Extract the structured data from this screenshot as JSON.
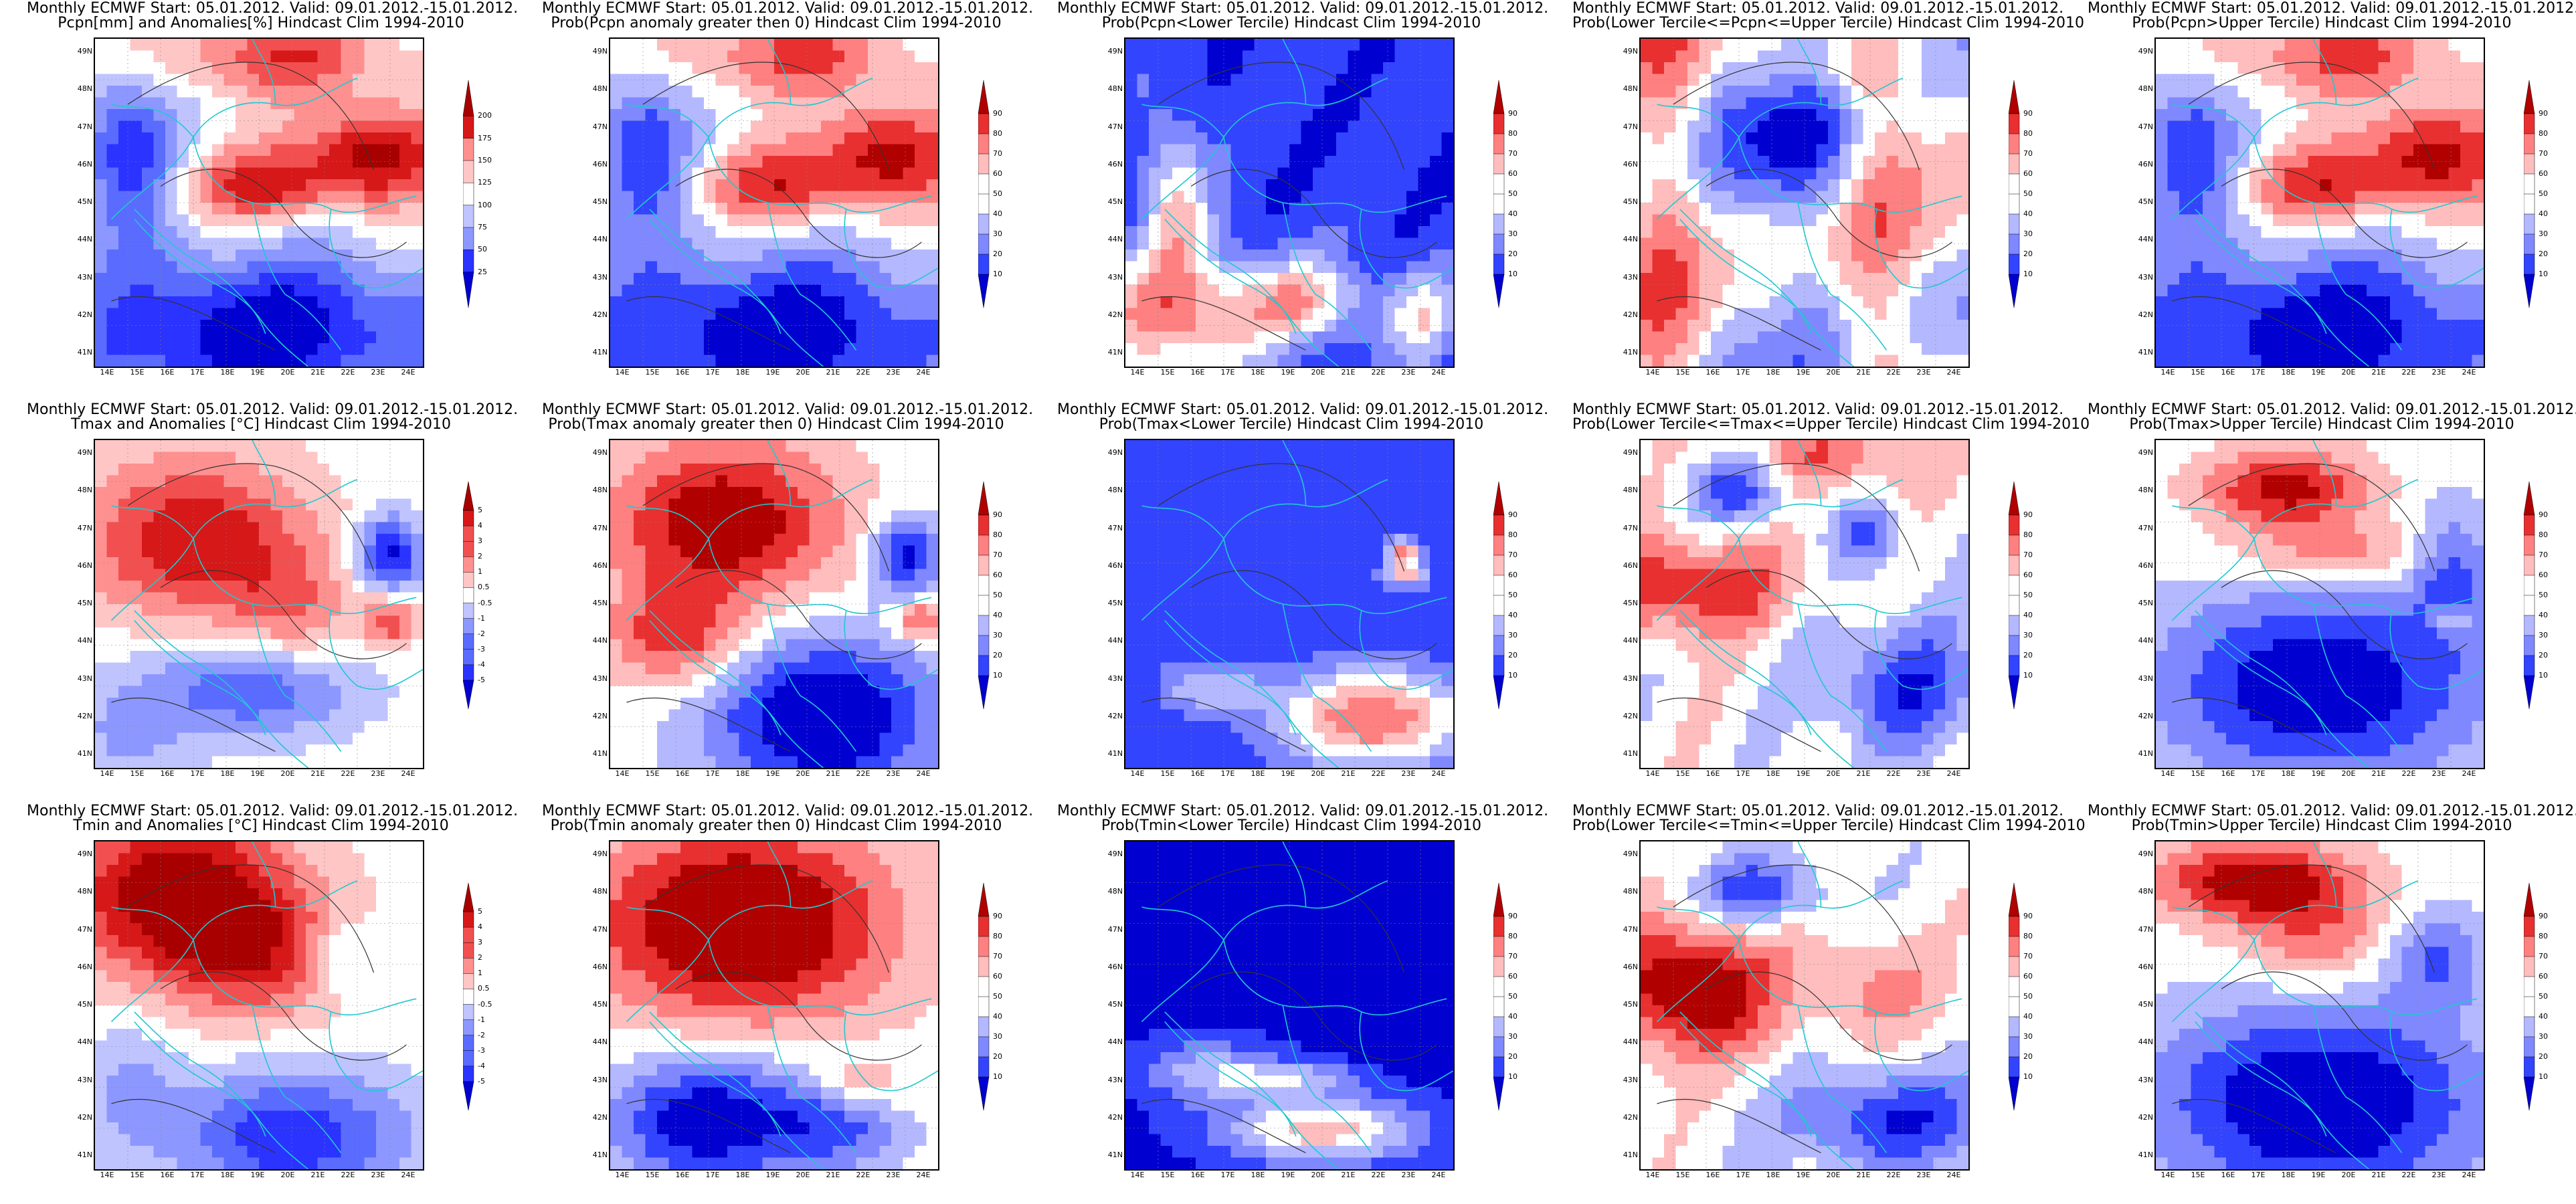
{
  "colors": {
    "anomaly_scale": [
      "#0000d0",
      "#2a33ff",
      "#5a6bff",
      "#8c98ff",
      "#bfc4ff",
      "#ffffff",
      "#ffc6c6",
      "#ff9090",
      "#f25050",
      "#d61818",
      "#a80000"
    ],
    "prob_scale": [
      "#0000d0",
      "#3344ff",
      "#7f88ff",
      "#b4b8ff",
      "#ffffff",
      "#ffbdbd",
      "#ff8080",
      "#e83030",
      "#b00000"
    ],
    "contour": "#333333",
    "border": "#20c8d0"
  },
  "lat_labels": [
    "49N",
    "48N",
    "47N",
    "46N",
    "45N",
    "44N",
    "43N",
    "42N",
    "41N"
  ],
  "lon_labels": [
    "14E",
    "15E",
    "16E",
    "17E",
    "18E",
    "19E",
    "20E",
    "21E",
    "22E",
    "23E",
    "24E"
  ],
  "panels": [
    {
      "title1": "Monthly ECMWF Start: 05.01.2012. Valid: 09.01.2012.-15.01.2012.",
      "title2": "Pcpn[mm] and Anomalies[%] Hindcast Clim 1994-2010",
      "scale": "anomaly",
      "cbar": [
        "200",
        "175",
        "150",
        "125",
        "100",
        "75",
        "50",
        "25"
      ],
      "pattern": 0
    },
    {
      "title1": "Monthly ECMWF Start: 05.01.2012. Valid: 09.01.2012.-15.01.2012.",
      "title2": "Prob(Pcpn anomaly greater then 0) Hindcast Clim 1994-2010",
      "scale": "prob",
      "cbar": [
        "90",
        "80",
        "70",
        "60",
        "50",
        "40",
        "30",
        "20",
        "10"
      ],
      "pattern": 0
    },
    {
      "title1": "Monthly ECMWF Start: 05.01.2012. Valid: 09.01.2012.-15.01.2012.",
      "title2": "Prob(Pcpn<Lower Tercile) Hindcast Clim 1994-2010",
      "scale": "prob",
      "cbar": [
        "90",
        "80",
        "70",
        "60",
        "50",
        "40",
        "30",
        "20",
        "10"
      ],
      "pattern": 1
    },
    {
      "title1": "Monthly ECMWF Start: 05.01.2012. Valid: 09.01.2012.-15.01.2012.",
      "title2": "Prob(Lower Tercile<=Pcpn<=Upper Tercile) Hindcast Clim 1994-2010",
      "scale": "prob",
      "cbar": [
        "90",
        "80",
        "70",
        "60",
        "50",
        "40",
        "30",
        "20",
        "10"
      ],
      "pattern": 2
    },
    {
      "title1": "Monthly ECMWF Start: 05.01.2012. Valid: 09.01.2012.-15.01.2012.",
      "title2": "Prob(Pcpn>Upper Tercile) Hindcast Clim 1994-2010",
      "scale": "prob",
      "cbar": [
        "90",
        "80",
        "70",
        "60",
        "50",
        "40",
        "30",
        "20",
        "10"
      ],
      "pattern": 0
    },
    {
      "title1": "Monthly ECMWF Start: 05.01.2012. Valid: 09.01.2012.-15.01.2012.",
      "title2": "Tmax and Anomalies [°C] Hindcast Clim 1994-2010",
      "scale": "anomaly",
      "cbar": [
        "5",
        "4",
        "3",
        "2",
        "1",
        "0.5",
        "-0.5",
        "-1",
        "-2",
        "-3",
        "-4",
        "-5"
      ],
      "pattern": 3
    },
    {
      "title1": "Monthly ECMWF Start: 05.01.2012. Valid: 09.01.2012.-15.01.2012.",
      "title2": "Prob(Tmax anomaly greater then 0) Hindcast Clim 1994-2010",
      "scale": "prob",
      "cbar": [
        "90",
        "80",
        "70",
        "60",
        "50",
        "40",
        "30",
        "20",
        "10"
      ],
      "pattern": 4
    },
    {
      "title1": "Monthly ECMWF Start: 05.01.2012. Valid: 09.01.2012.-15.01.2012.",
      "title2": "Prob(Tmax<Lower Tercile) Hindcast Clim 1994-2010",
      "scale": "prob",
      "cbar": [
        "90",
        "80",
        "70",
        "60",
        "50",
        "40",
        "30",
        "20",
        "10"
      ],
      "pattern": 5
    },
    {
      "title1": "Monthly ECMWF Start: 05.01.2012. Valid: 09.01.2012.-15.01.2012.",
      "title2": "Prob(Lower Tercile<=Tmax<=Upper Tercile) Hindcast Clim 1994-2010",
      "scale": "prob",
      "cbar": [
        "90",
        "80",
        "70",
        "60",
        "50",
        "40",
        "30",
        "20",
        "10"
      ],
      "pattern": 6
    },
    {
      "title1": "Monthly ECMWF Start: 05.01.2012. Valid: 09.01.2012.-15.01.2012.",
      "title2": "Prob(Tmax>Upper Tercile) Hindcast Clim 1994-2010",
      "scale": "prob",
      "cbar": [
        "90",
        "80",
        "70",
        "60",
        "50",
        "40",
        "30",
        "20",
        "10"
      ],
      "pattern": 7
    },
    {
      "title1": "Monthly ECMWF Start: 05.01.2012. Valid: 09.01.2012.-15.01.2012.",
      "title2": "Tmin and Anomalies [°C] Hindcast Clim 1994-2010",
      "scale": "anomaly",
      "cbar": [
        "5",
        "4",
        "3",
        "2",
        "1",
        "0.5",
        "-0.5",
        "-1",
        "-2",
        "-3",
        "-4",
        "-5"
      ],
      "pattern": 8
    },
    {
      "title1": "Monthly ECMWF Start: 05.01.2012. Valid: 09.01.2012.-15.01.2012.",
      "title2": "Prob(Tmin anomaly greater then 0) Hindcast Clim 1994-2010",
      "scale": "prob",
      "cbar": [
        "90",
        "80",
        "70",
        "60",
        "50",
        "40",
        "30",
        "20",
        "10"
      ],
      "pattern": 9
    },
    {
      "title1": "Monthly ECMWF Start: 05.01.2012. Valid: 09.01.2012.-15.01.2012.",
      "title2": "Prob(Tmin<Lower Tercile) Hindcast Clim 1994-2010",
      "scale": "prob",
      "cbar": [
        "90",
        "80",
        "70",
        "60",
        "50",
        "40",
        "30",
        "20",
        "10"
      ],
      "pattern": 10
    },
    {
      "title1": "Monthly ECMWF Start: 05.01.2012. Valid: 09.01.2012.-15.01.2012.",
      "title2": "Prob(Lower Tercile<=Tmin<=Upper Tercile) Hindcast Clim 1994-2010",
      "scale": "prob",
      "cbar": [
        "90",
        "80",
        "70",
        "60",
        "50",
        "40",
        "30",
        "20",
        "10"
      ],
      "pattern": 11
    },
    {
      "title1": "Monthly ECMWF Start: 05.01.2012. Valid: 09.01.2012.-15.01.2012.",
      "title2": "Prob(Tmin>Upper Tercile) Hindcast Clim 1994-2010",
      "scale": "prob",
      "cbar": [
        "90",
        "80",
        "70",
        "60",
        "50",
        "40",
        "30",
        "20",
        "10"
      ],
      "pattern": 12
    }
  ]
}
